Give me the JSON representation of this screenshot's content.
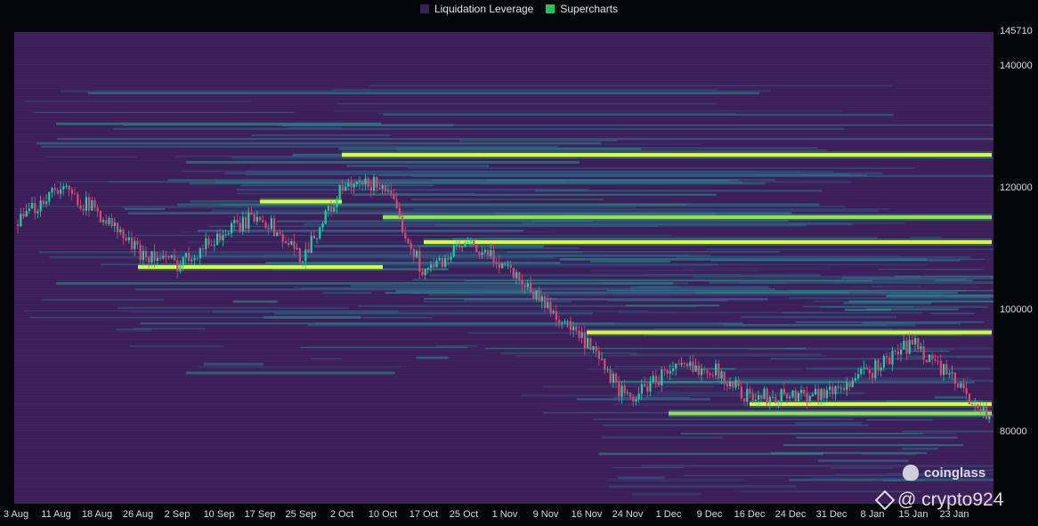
{
  "chart_data": {
    "type": "heatmap",
    "legend": [
      {
        "label": "Liquidation Leverage",
        "color": "#3b1f5a"
      },
      {
        "label": "Supercharts",
        "color": "#22c55e"
      }
    ],
    "legend_position": "top-center",
    "ylim": [
      70000,
      145710
    ],
    "yticks": [
      {
        "label": "145710",
        "value": 145710
      },
      {
        "label": "140000",
        "value": 140000
      },
      {
        "label": "120000",
        "value": 120000
      },
      {
        "label": "100000",
        "value": 100000
      },
      {
        "label": "80000",
        "value": 80000
      }
    ],
    "xticks": [
      "3 Aug",
      "11 Aug",
      "18 Aug",
      "26 Aug",
      "2 Sep",
      "10 Sep",
      "17 Sep",
      "25 Sep",
      "2 Oct",
      "10 Oct",
      "17 Oct",
      "25 Oct",
      "1 Nov",
      "9 Nov",
      "16 Nov",
      "24 Nov",
      "1 Dec",
      "9 Dec",
      "16 Dec",
      "24 Dec",
      "31 Dec",
      "8 Jan",
      "15 Jan",
      "23 Jan"
    ],
    "price_path": [
      {
        "x": "3 Aug",
        "price": 114500
      },
      {
        "x": "11 Aug",
        "price": 121000
      },
      {
        "x": "18 Aug",
        "price": 117000
      },
      {
        "x": "26 Aug",
        "price": 110500
      },
      {
        "x": "2 Sep",
        "price": 108500
      },
      {
        "x": "10 Sep",
        "price": 113000
      },
      {
        "x": "17 Sep",
        "price": 116500
      },
      {
        "x": "25 Sep",
        "price": 109500
      },
      {
        "x": "2 Oct",
        "price": 120500
      },
      {
        "x": "10 Oct",
        "price": 121500
      },
      {
        "x": "17 Oct",
        "price": 107000
      },
      {
        "x": "25 Oct",
        "price": 111500
      },
      {
        "x": "1 Nov",
        "price": 108500
      },
      {
        "x": "9 Nov",
        "price": 102000
      },
      {
        "x": "16 Nov",
        "price": 95500
      },
      {
        "x": "24 Nov",
        "price": 86500
      },
      {
        "x": "1 Dec",
        "price": 91500
      },
      {
        "x": "9 Dec",
        "price": 92000
      },
      {
        "x": "16 Dec",
        "price": 87000
      },
      {
        "x": "24 Dec",
        "price": 87500
      },
      {
        "x": "31 Dec",
        "price": 88000
      },
      {
        "x": "8 Jan",
        "price": 91500
      },
      {
        "x": "15 Jan",
        "price": 96000
      },
      {
        "x": "23 Jan",
        "price": 89500
      },
      {
        "x": "end",
        "price": 83500
      }
    ],
    "liquidation_bands": [
      {
        "price": 126000,
        "from": "2 Oct",
        "to": "end",
        "intensity": "high"
      },
      {
        "price": 116000,
        "from": "10 Oct",
        "to": "end",
        "intensity": "medium"
      },
      {
        "price": 112000,
        "from": "17 Oct",
        "to": "end",
        "intensity": "high"
      },
      {
        "price": 108000,
        "from": "26 Aug",
        "to": "10 Oct",
        "intensity": "high"
      },
      {
        "price": 118500,
        "from": "17 Sep",
        "to": "2 Oct",
        "intensity": "high"
      },
      {
        "price": 97500,
        "from": "16 Nov",
        "to": "end",
        "intensity": "high"
      },
      {
        "price": 86000,
        "from": "16 Dec",
        "to": "end",
        "intensity": "high"
      },
      {
        "price": 84500,
        "from": "1 Dec",
        "to": "end",
        "intensity": "medium"
      }
    ]
  },
  "watermarks": {
    "brand": "coinglass",
    "author": "@ crypto924"
  }
}
